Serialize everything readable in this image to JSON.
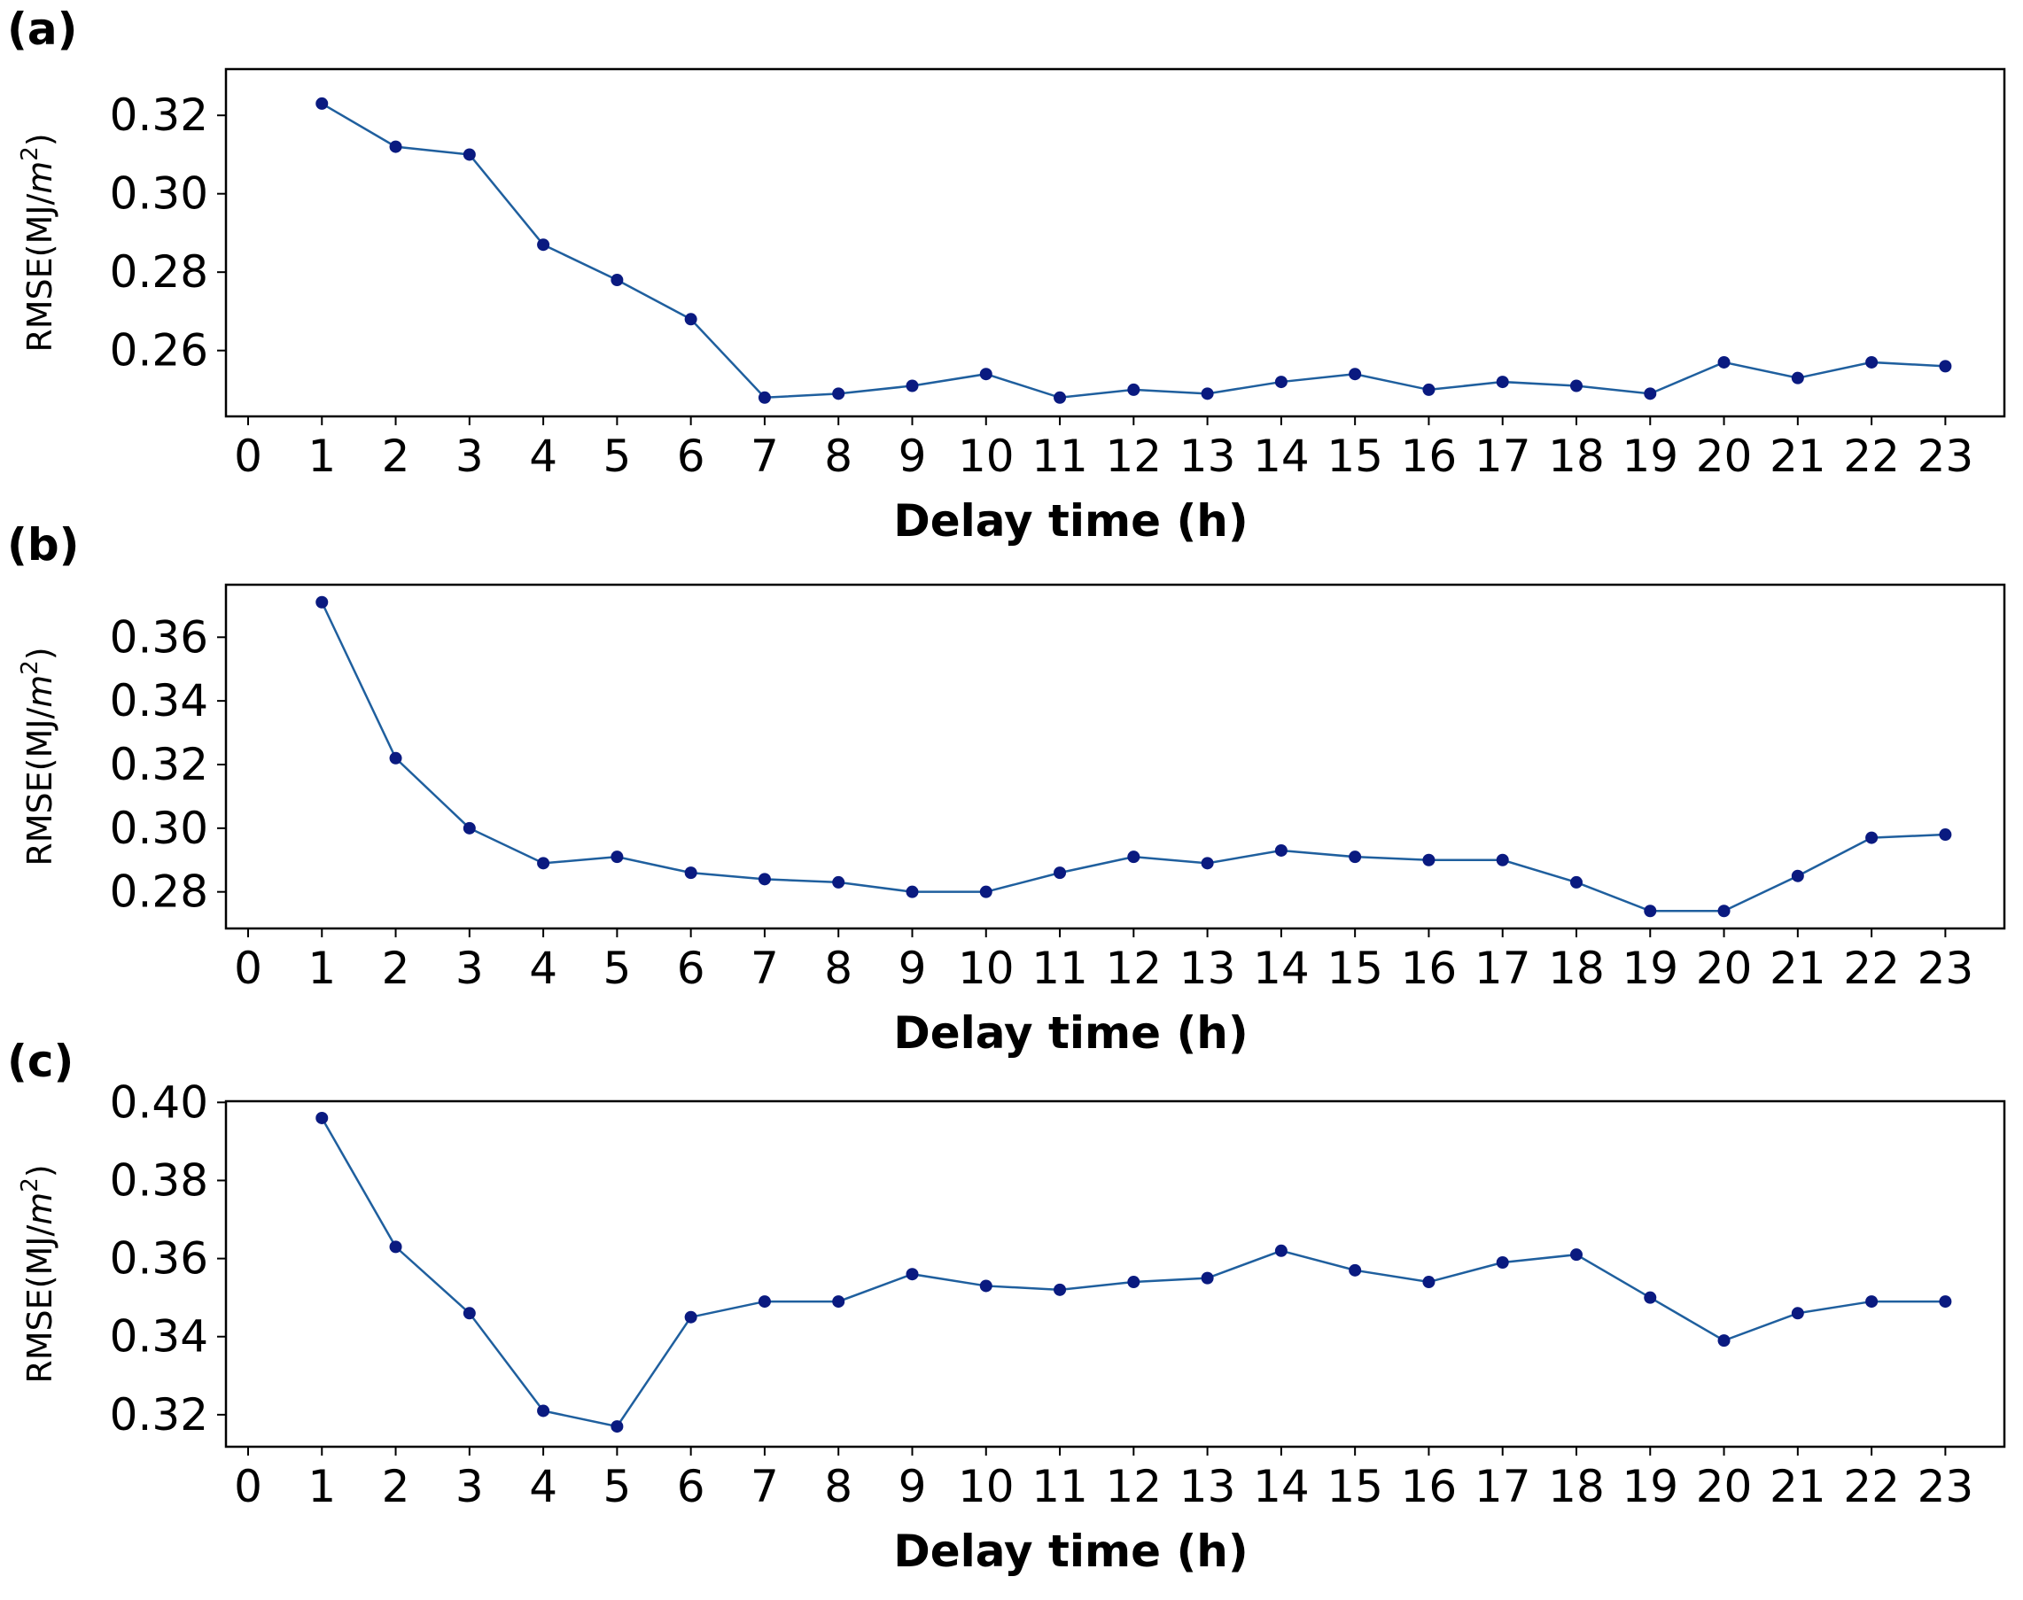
{
  "chart_data": [
    {
      "type": "line",
      "panel_label": "(a)",
      "xlabel": "Delay time (h)",
      "ylabel_prefix": "RMSE(MJ/",
      "ylabel_unit": "m",
      "ylabel_exp": "2",
      "ylabel_suffix": ")",
      "xlim": [
        -0.3,
        23.8
      ],
      "xticks": [
        "0",
        "1",
        "2",
        "3",
        "4",
        "5",
        "6",
        "7",
        "8",
        "9",
        "10",
        "11",
        "12",
        "13",
        "14",
        "15",
        "16",
        "17",
        "18",
        "19",
        "20",
        "21",
        "22",
        "23"
      ],
      "ylim": [
        0.2432,
        0.3318
      ],
      "yticks": [
        "0.26",
        "0.28",
        "0.30",
        "0.32"
      ],
      "grid": false,
      "series": [
        {
          "color": "#1f5f9e",
          "marker_color": "#0a1a80",
          "x": [
            1,
            2,
            3,
            4,
            5,
            6,
            7,
            8,
            9,
            10,
            11,
            12,
            13,
            14,
            15,
            16,
            17,
            18,
            19,
            20,
            21,
            22,
            23
          ],
          "y": [
            0.323,
            0.312,
            0.31,
            0.287,
            0.278,
            0.268,
            0.248,
            0.249,
            0.251,
            0.254,
            0.248,
            0.25,
            0.249,
            0.252,
            0.254,
            0.25,
            0.252,
            0.251,
            0.249,
            0.257,
            0.253,
            0.257,
            0.256
          ]
        }
      ]
    },
    {
      "type": "line",
      "panel_label": "(b)",
      "xlabel": "Delay time (h)",
      "ylabel_prefix": "RMSE(MJ/",
      "ylabel_unit": "m",
      "ylabel_exp": "2",
      "ylabel_suffix": ")",
      "xlim": [
        -0.3,
        23.8
      ],
      "xticks": [
        "0",
        "1",
        "2",
        "3",
        "4",
        "5",
        "6",
        "7",
        "8",
        "9",
        "10",
        "11",
        "12",
        "13",
        "14",
        "15",
        "16",
        "17",
        "18",
        "19",
        "20",
        "21",
        "22",
        "23"
      ],
      "ylim": [
        0.2685,
        0.3765
      ],
      "yticks": [
        "0.28",
        "0.30",
        "0.32",
        "0.34",
        "0.36"
      ],
      "grid": false,
      "series": [
        {
          "color": "#1f5f9e",
          "marker_color": "#0a1a80",
          "x": [
            1,
            2,
            3,
            4,
            5,
            6,
            7,
            8,
            9,
            10,
            11,
            12,
            13,
            14,
            15,
            16,
            17,
            18,
            19,
            20,
            21,
            22,
            23
          ],
          "y": [
            0.371,
            0.322,
            0.3,
            0.289,
            0.291,
            0.286,
            0.284,
            0.283,
            0.28,
            0.28,
            0.286,
            0.291,
            0.289,
            0.293,
            0.291,
            0.29,
            0.29,
            0.283,
            0.274,
            0.274,
            0.285,
            0.297,
            0.298
          ]
        }
      ]
    },
    {
      "type": "line",
      "panel_label": "(c)",
      "xlabel": "Delay time (h)",
      "ylabel_prefix": "RMSE(MJ/",
      "ylabel_unit": "m",
      "ylabel_exp": "2",
      "ylabel_suffix": ")",
      "xlim": [
        -0.3,
        23.8
      ],
      "xticks": [
        "0",
        "1",
        "2",
        "3",
        "4",
        "5",
        "6",
        "7",
        "8",
        "9",
        "10",
        "11",
        "12",
        "13",
        "14",
        "15",
        "16",
        "17",
        "18",
        "19",
        "20",
        "21",
        "22",
        "23"
      ],
      "ylim": [
        0.3118,
        0.4003
      ],
      "yticks": [
        "0.32",
        "0.34",
        "0.36",
        "0.38",
        "0.40"
      ],
      "grid": false,
      "series": [
        {
          "color": "#1f5f9e",
          "marker_color": "#0a1a80",
          "x": [
            1,
            2,
            3,
            4,
            5,
            6,
            7,
            8,
            9,
            10,
            11,
            12,
            13,
            14,
            15,
            16,
            17,
            18,
            19,
            20,
            21,
            22,
            23
          ],
          "y": [
            0.396,
            0.363,
            0.346,
            0.321,
            0.317,
            0.345,
            0.349,
            0.349,
            0.356,
            0.353,
            0.352,
            0.354,
            0.355,
            0.362,
            0.357,
            0.354,
            0.359,
            0.361,
            0.35,
            0.339,
            0.346,
            0.349,
            0.349
          ]
        }
      ]
    }
  ]
}
